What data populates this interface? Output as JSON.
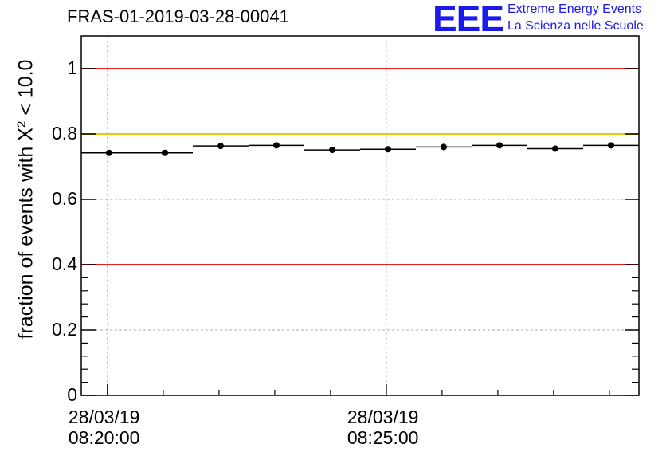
{
  "header": {
    "run_id": "FRAS-01-2019-03-28-00041",
    "logo_text": "EEE",
    "logo_line1": "Extreme Energy Events",
    "logo_line2": "La Scienza nelle Scuole"
  },
  "colors": {
    "logo": "#1a1aee",
    "red_line": "#e8201a",
    "yellow_line": "#f5c400",
    "grid": "#aaaaaa",
    "data": "#000000"
  },
  "chart_data": {
    "type": "scatter",
    "title": "FRAS-01-2019-03-28-00041",
    "ylabel_prefix": "fraction of events with ",
    "ylabel_symbol": "X",
    "ylabel_power": "2",
    "ylabel_suffix": " < 10.0",
    "xlabel": "",
    "ylim": [
      0,
      1.1
    ],
    "yticks": [
      0,
      0.2,
      0.4,
      0.6,
      0.8,
      1
    ],
    "ytick_labels": [
      "0",
      "0.2",
      "0.4",
      "0.6",
      "0.8",
      "1"
    ],
    "x_unit": "minutes after 08:20:00",
    "xlim": [
      -0.47,
      9.53
    ],
    "xticks_major": [
      {
        "x": 0,
        "date": "28/03/19",
        "time": "08:20:00"
      },
      {
        "x": 5,
        "date": "28/03/19",
        "time": "08:25:00"
      }
    ],
    "xticks_minor": [
      1,
      2,
      3,
      4,
      6,
      7,
      8,
      9
    ],
    "grid": true,
    "reference_lines": [
      {
        "y": 1.0,
        "color": "red"
      },
      {
        "y": 0.8,
        "color": "yellow"
      },
      {
        "y": 0.4,
        "color": "red"
      }
    ],
    "bin_edges": [
      -0.47,
      0.53,
      1.53,
      2.53,
      3.53,
      4.53,
      5.53,
      6.53,
      7.53,
      8.53,
      9.53
    ],
    "points": [
      {
        "x": 0.03,
        "y": 0.742
      },
      {
        "x": 1.03,
        "y": 0.742
      },
      {
        "x": 2.03,
        "y": 0.763
      },
      {
        "x": 3.03,
        "y": 0.765
      },
      {
        "x": 4.03,
        "y": 0.751
      },
      {
        "x": 5.03,
        "y": 0.753
      },
      {
        "x": 6.03,
        "y": 0.76
      },
      {
        "x": 7.03,
        "y": 0.765
      },
      {
        "x": 8.03,
        "y": 0.755
      },
      {
        "x": 9.03,
        "y": 0.765
      }
    ]
  }
}
